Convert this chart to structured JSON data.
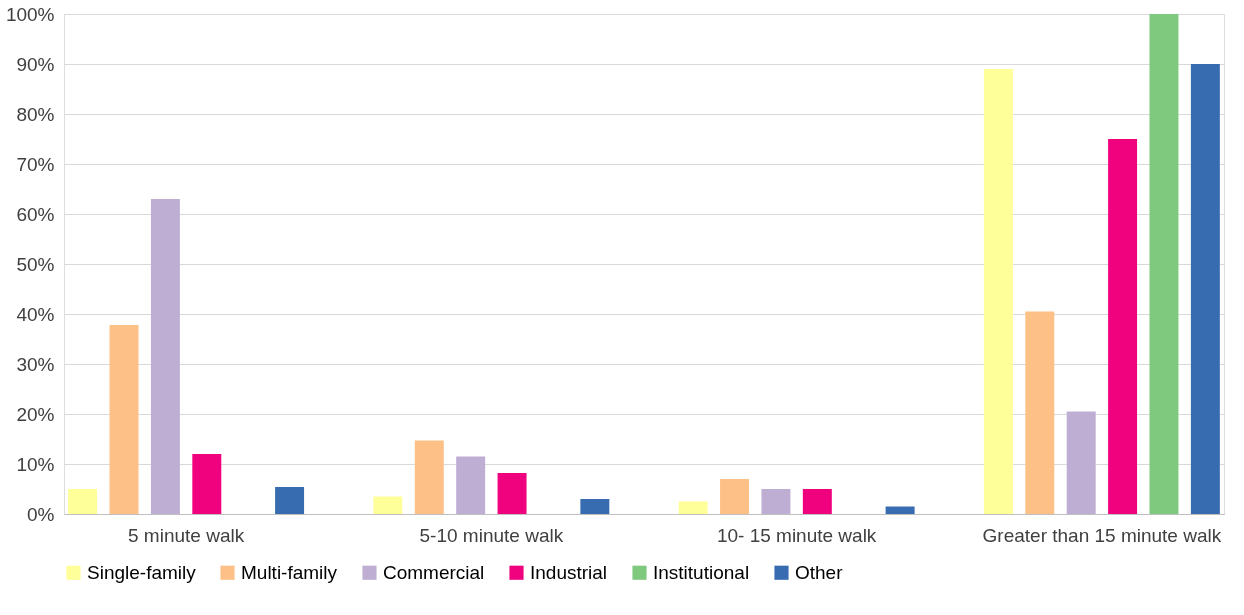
{
  "chart_data": {
    "type": "bar",
    "categories": [
      "5 minute walk",
      "5-10 minute walk",
      "10- 15 minute walk",
      "Greater than 15 minute walk"
    ],
    "series": [
      {
        "name": "Single-family",
        "color": "#ffff99",
        "values": [
          5,
          3.5,
          2.5,
          89
        ]
      },
      {
        "name": "Multi-family",
        "color": "#fdc086",
        "values": [
          37.8,
          14.7,
          7,
          40.5
        ]
      },
      {
        "name": "Commercial",
        "color": "#beaed4",
        "values": [
          63,
          11.5,
          5,
          20.5
        ]
      },
      {
        "name": "Industrial",
        "color": "#f0027f",
        "values": [
          12,
          8.2,
          5,
          75
        ]
      },
      {
        "name": "Institutional",
        "color": "#7fc97f",
        "values": [
          0,
          0,
          0,
          100
        ]
      },
      {
        "name": "Other",
        "color": "#386cb0",
        "values": [
          5.4,
          3,
          1.5,
          90
        ]
      }
    ],
    "ylim": [
      0,
      100
    ],
    "yticks": [
      {
        "value": 0,
        "label": "0%"
      },
      {
        "value": 10,
        "label": "10%"
      },
      {
        "value": 20,
        "label": "20%"
      },
      {
        "value": 30,
        "label": "30%"
      },
      {
        "value": 40,
        "label": "40%"
      },
      {
        "value": 50,
        "label": "50%"
      },
      {
        "value": 60,
        "label": "60%"
      },
      {
        "value": 70,
        "label": "70%"
      },
      {
        "value": 80,
        "label": "80%"
      },
      {
        "value": 90,
        "label": "90%"
      },
      {
        "value": 100,
        "label": "100%"
      }
    ],
    "grid": "y",
    "legend": "bottom"
  }
}
